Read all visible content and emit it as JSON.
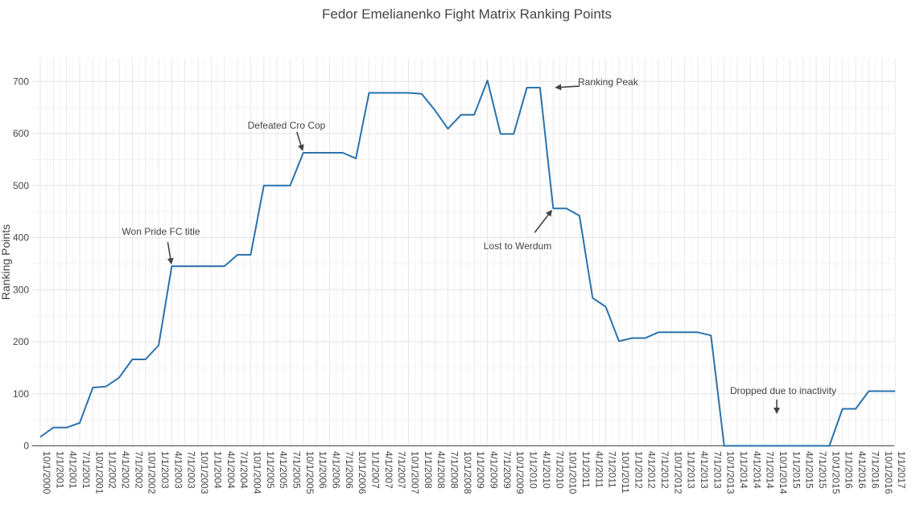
{
  "chart_data": {
    "type": "line",
    "title": "Fedor Emelianenko Fight Matrix Ranking Points",
    "xlabel": "",
    "ylabel": "Ranking Points",
    "ylim": [
      -5,
      720
    ],
    "yticks": [
      0,
      100,
      200,
      300,
      400,
      500,
      600,
      700
    ],
    "grid": true,
    "line_color": "#2a72ad",
    "series": [
      {
        "x": [
          "10/1/2000",
          "1/1/2001",
          "4/1/2001",
          "7/1/2001",
          "10/1/2001",
          "1/1/2002",
          "4/1/2002",
          "7/1/2002",
          "10/1/2002",
          "1/1/2003",
          "4/1/2003",
          "7/1/2003",
          "10/1/2003",
          "1/1/2004",
          "4/1/2004",
          "7/1/2004",
          "10/1/2004",
          "1/1/2005",
          "4/1/2005",
          "7/1/2005",
          "10/1/2005",
          "1/1/2006",
          "4/1/2006",
          "7/1/2006",
          "10/1/2006",
          "1/1/2007",
          "4/1/2007",
          "7/1/2007",
          "10/1/2007",
          "1/1/2008",
          "4/1/2008",
          "7/1/2008",
          "10/1/2008",
          "1/1/2009",
          "4/1/2009",
          "7/1/2009",
          "10/1/2009",
          "1/1/2010",
          "4/1/2010",
          "7/1/2010",
          "10/1/2010",
          "1/1/2011",
          "4/1/2011",
          "7/1/2011",
          "10/1/2011",
          "1/1/2012",
          "4/1/2012",
          "7/1/2012",
          "10/1/2012",
          "1/1/2013",
          "4/1/2013",
          "7/1/2013",
          "10/1/2013",
          "1/1/2014",
          "4/1/2014",
          "7/1/2014",
          "10/1/2014",
          "1/1/2015",
          "4/1/2015",
          "7/1/2015",
          "10/1/2015",
          "1/1/2016",
          "4/1/2016",
          "7/1/2016",
          "10/1/2016",
          "1/1/2017"
        ],
        "values": [
          17,
          35,
          35,
          44,
          112,
          114,
          131,
          166,
          166,
          193,
          345,
          345,
          345,
          345,
          345,
          367,
          367,
          500,
          500,
          500,
          563,
          563,
          563,
          563,
          552,
          678,
          678,
          678,
          678,
          676,
          645,
          609,
          636,
          636,
          702,
          599,
          599,
          688,
          688,
          456,
          456,
          442,
          284,
          267,
          201,
          207,
          207,
          218,
          218,
          218,
          218,
          212,
          0,
          0,
          0,
          0,
          0,
          0,
          0,
          0,
          0,
          71,
          71,
          105,
          105,
          105
        ]
      }
    ],
    "annotations": [
      {
        "text": "Won Pride FC title",
        "x": "4/1/2003",
        "y": 345
      },
      {
        "text": "Defeated Cro Cop",
        "x": "10/1/2005",
        "y": 563
      },
      {
        "text": "Ranking Peak",
        "x": "7/1/2010",
        "y": 688
      },
      {
        "text": "Lost to Werdum",
        "x": "7/1/2010",
        "y": 456
      },
      {
        "text": "Dropped due to inactivity",
        "x": "10/1/2014",
        "y": 58
      }
    ]
  }
}
